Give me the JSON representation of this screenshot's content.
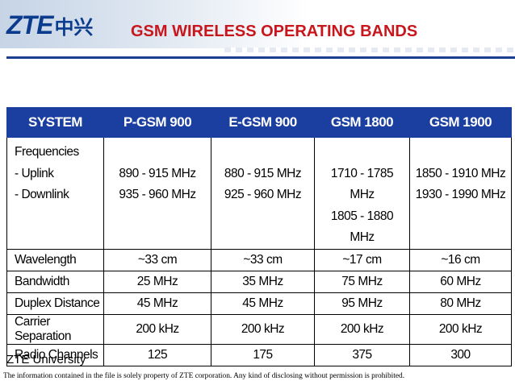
{
  "header": {
    "logo_latin": "ZTE",
    "logo_cjk": "中兴",
    "title": "GSM WIRELESS OPERATING BANDS"
  },
  "table": {
    "columns": [
      "SYSTEM",
      "P-GSM 900",
      "E-GSM 900",
      "GSM 1800",
      "GSM 1900"
    ],
    "frequencies": {
      "label_lines": [
        "Frequencies",
        "- Uplink",
        "- Downlink"
      ],
      "uplink": [
        "890 - 915 MHz",
        "880 - 915 MHz",
        "1710 - 1785 MHz",
        "1850 - 1910 MHz"
      ],
      "downlink": [
        "935 - 960 MHz",
        "925 - 960 MHz",
        "1805 - 1880 MHz",
        "1930 - 1990 MHz"
      ]
    },
    "rows": [
      {
        "label": "Wavelength",
        "values": [
          "~33 cm",
          "~33 cm",
          "~17 cm",
          "~16 cm"
        ]
      },
      {
        "label": "Bandwidth",
        "values": [
          "25 MHz",
          "35 MHz",
          "75 MHz",
          "60 MHz"
        ]
      },
      {
        "label": "Duplex Distance",
        "values": [
          "45 MHz",
          "45 MHz",
          "95 MHz",
          "80 MHz"
        ]
      },
      {
        "label": "Carrier Separation",
        "values": [
          "200 kHz",
          "200 kHz",
          "200 kHz",
          "200 kHz"
        ]
      },
      {
        "label": "Radio Channels",
        "values": [
          "125",
          "175",
          "375",
          "300"
        ]
      }
    ]
  },
  "footer": {
    "org": "ZTE University",
    "note": "The information contained in the file is solely property of ZTE corporation. Any kind of disclosing without permission is prohibited."
  },
  "colors": {
    "title_red": "#c8161d",
    "header_blue": "#1b3fa0",
    "logo_blue": "#0a3b8c"
  }
}
